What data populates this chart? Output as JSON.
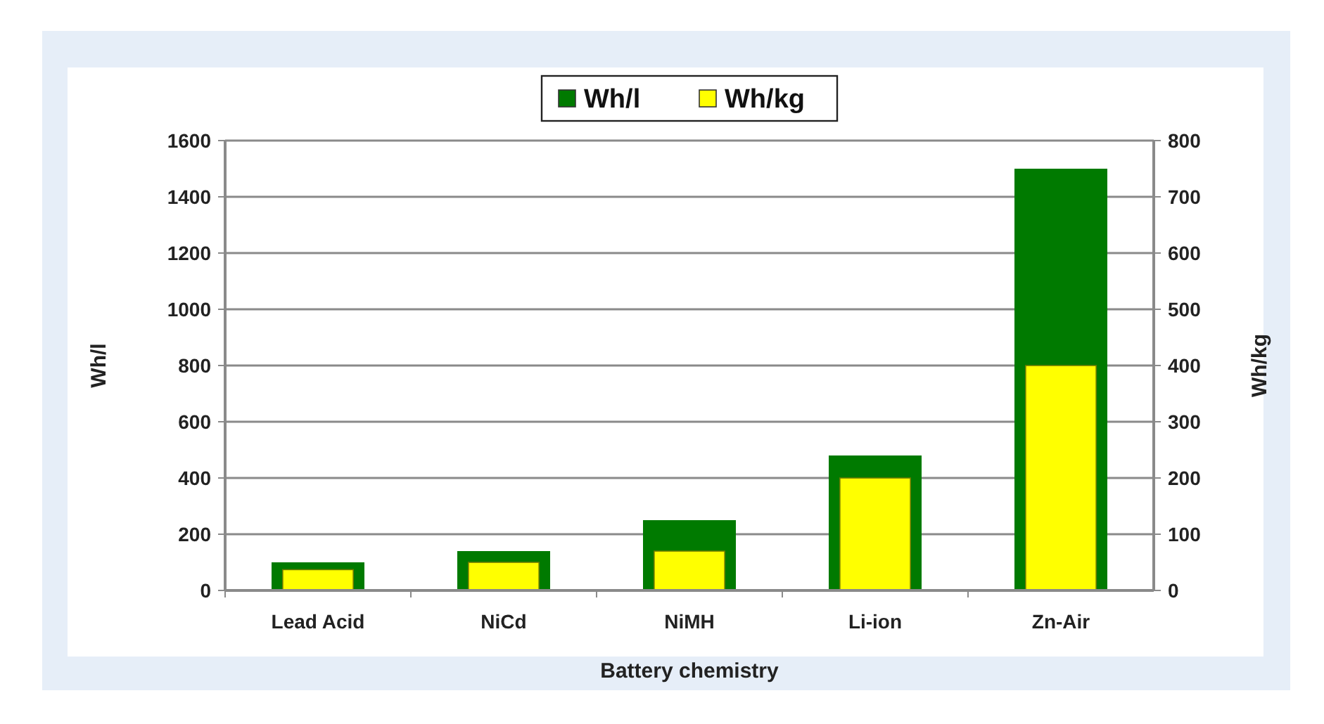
{
  "chart_data": {
    "type": "bar",
    "categories": [
      "Lead Acid",
      "NiCd",
      "NiMH",
      "Li-ion",
      "Zn-Air"
    ],
    "series": [
      {
        "name": "Wh/l",
        "color": "#007a00",
        "values": [
          100,
          140,
          250,
          480,
          1500
        ]
      },
      {
        "name": "Wh/kg",
        "color": "#ffff00",
        "values": [
          37,
          50,
          70,
          200,
          400
        ],
        "axis": "y2"
      }
    ],
    "xlabel": "Battery chemistry",
    "ylabel": "Wh/l",
    "y2label": "Wh/kg",
    "ylim": [
      0,
      1600
    ],
    "yticks": [
      0,
      200,
      400,
      600,
      800,
      1000,
      1200,
      1400,
      1600
    ],
    "y2lim": [
      0,
      800
    ],
    "y2ticks": [
      0,
      100,
      200,
      300,
      400,
      500,
      600,
      700,
      800
    ],
    "grid": "y",
    "legend": "top"
  }
}
